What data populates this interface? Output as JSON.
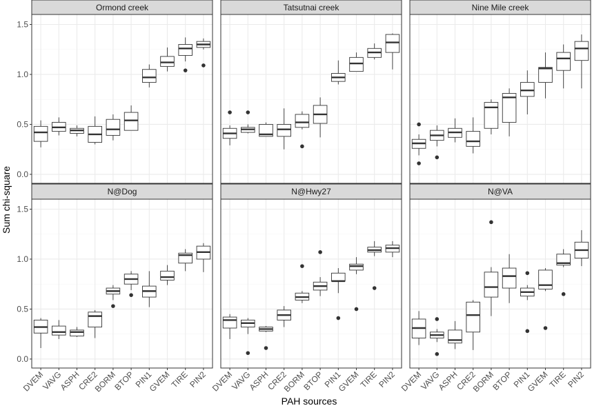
{
  "chart_data": {
    "type": "boxplot",
    "xlabel": "PAH sources",
    "ylabel": "Sum chi-square",
    "ylim": [
      -0.09,
      1.6
    ],
    "yticks": [
      0.0,
      0.5,
      1.0,
      1.5
    ],
    "ytick_labels": [
      "0.0",
      "0.5",
      "1.0",
      "1.5"
    ],
    "categories": [
      "DVEM",
      "VAVG",
      "ASPH",
      "CRE2",
      "BORM",
      "BTOP",
      "PIN1",
      "GVEM",
      "TIRE",
      "PIN2"
    ],
    "grid": true,
    "colors": {
      "panel_bg": "#ffffff",
      "strip_bg": "#d9d9d9",
      "border": "#333333",
      "grid_major": "#ebebeb",
      "grid_minor": "#f5f5f5",
      "box_line": "#333333",
      "outlier": "#333333"
    },
    "panels": [
      {
        "title": "Ormond creek",
        "boxes": [
          {
            "min": 0.27,
            "q1": 0.33,
            "median": 0.42,
            "q3": 0.48,
            "max": 0.54,
            "outliers": []
          },
          {
            "min": 0.39,
            "q1": 0.43,
            "median": 0.47,
            "q3": 0.52,
            "max": 0.57,
            "outliers": []
          },
          {
            "min": 0.38,
            "q1": 0.41,
            "median": 0.44,
            "q3": 0.46,
            "max": 0.49,
            "outliers": []
          },
          {
            "min": 0.3,
            "q1": 0.32,
            "median": 0.4,
            "q3": 0.48,
            "max": 0.58,
            "outliers": []
          },
          {
            "min": 0.34,
            "q1": 0.39,
            "median": 0.45,
            "q3": 0.55,
            "max": 0.6,
            "outliers": []
          },
          {
            "min": 0.44,
            "q1": 0.44,
            "median": 0.54,
            "q3": 0.62,
            "max": 0.69,
            "outliers": []
          },
          {
            "min": 0.87,
            "q1": 0.92,
            "median": 0.97,
            "q3": 1.05,
            "max": 1.1,
            "outliers": []
          },
          {
            "min": 1.03,
            "q1": 1.08,
            "median": 1.12,
            "q3": 1.18,
            "max": 1.27,
            "outliers": []
          },
          {
            "min": 1.13,
            "q1": 1.19,
            "median": 1.26,
            "q3": 1.3,
            "max": 1.37,
            "outliers": [
              1.04
            ]
          },
          {
            "min": 1.25,
            "q1": 1.27,
            "median": 1.3,
            "q3": 1.33,
            "max": 1.36,
            "outliers": [
              1.09
            ]
          }
        ]
      },
      {
        "title": "Tatsutnai creek",
        "boxes": [
          {
            "min": 0.29,
            "q1": 0.36,
            "median": 0.41,
            "q3": 0.46,
            "max": 0.49,
            "outliers": [
              0.62
            ]
          },
          {
            "min": 0.41,
            "q1": 0.42,
            "median": 0.45,
            "q3": 0.47,
            "max": 0.5,
            "outliers": [
              0.62
            ]
          },
          {
            "min": 0.38,
            "q1": 0.38,
            "median": 0.4,
            "q3": 0.5,
            "max": 0.52,
            "outliers": []
          },
          {
            "min": 0.25,
            "q1": 0.38,
            "median": 0.45,
            "q3": 0.5,
            "max": 0.66,
            "outliers": []
          },
          {
            "min": 0.45,
            "q1": 0.47,
            "median": 0.52,
            "q3": 0.6,
            "max": 0.63,
            "outliers": [
              0.28
            ]
          },
          {
            "min": 0.37,
            "q1": 0.51,
            "median": 0.6,
            "q3": 0.69,
            "max": 0.77,
            "outliers": []
          },
          {
            "min": 0.9,
            "q1": 0.93,
            "median": 0.97,
            "q3": 1.01,
            "max": 1.14,
            "outliers": []
          },
          {
            "min": 1.03,
            "q1": 1.03,
            "median": 1.11,
            "q3": 1.17,
            "max": 1.22,
            "outliers": []
          },
          {
            "min": 1.15,
            "q1": 1.17,
            "median": 1.22,
            "q3": 1.26,
            "max": 1.31,
            "outliers": []
          },
          {
            "min": 1.05,
            "q1": 1.22,
            "median": 1.32,
            "q3": 1.4,
            "max": 1.41,
            "outliers": []
          }
        ]
      },
      {
        "title": "Nine Mile creek",
        "boxes": [
          {
            "min": 0.19,
            "q1": 0.26,
            "median": 0.31,
            "q3": 0.35,
            "max": 0.4,
            "outliers": [
              0.11,
              0.5
            ]
          },
          {
            "min": 0.28,
            "q1": 0.34,
            "median": 0.39,
            "q3": 0.44,
            "max": 0.49,
            "outliers": [
              0.17
            ]
          },
          {
            "min": 0.32,
            "q1": 0.37,
            "median": 0.42,
            "q3": 0.46,
            "max": 0.56,
            "outliers": []
          },
          {
            "min": 0.21,
            "q1": 0.28,
            "median": 0.33,
            "q3": 0.43,
            "max": 0.57,
            "outliers": []
          },
          {
            "min": 0.4,
            "q1": 0.46,
            "median": 0.67,
            "q3": 0.72,
            "max": 0.75,
            "outliers": []
          },
          {
            "min": 0.38,
            "q1": 0.52,
            "median": 0.77,
            "q3": 0.81,
            "max": 0.86,
            "outliers": []
          },
          {
            "min": 0.6,
            "q1": 0.78,
            "median": 0.84,
            "q3": 0.92,
            "max": 1.04,
            "outliers": []
          },
          {
            "min": 0.76,
            "q1": 0.92,
            "median": 1.06,
            "q3": 1.07,
            "max": 1.22,
            "outliers": []
          },
          {
            "min": 0.86,
            "q1": 1.04,
            "median": 1.16,
            "q3": 1.22,
            "max": 1.3,
            "outliers": []
          },
          {
            "min": 0.86,
            "q1": 1.14,
            "median": 1.26,
            "q3": 1.33,
            "max": 1.4,
            "outliers": []
          }
        ]
      },
      {
        "title": "N@Dog",
        "boxes": [
          {
            "min": 0.11,
            "q1": 0.26,
            "median": 0.32,
            "q3": 0.39,
            "max": 0.41,
            "outliers": []
          },
          {
            "min": 0.2,
            "q1": 0.24,
            "median": 0.27,
            "q3": 0.33,
            "max": 0.39,
            "outliers": []
          },
          {
            "min": 0.22,
            "q1": 0.23,
            "median": 0.27,
            "q3": 0.29,
            "max": 0.32,
            "outliers": []
          },
          {
            "min": 0.21,
            "q1": 0.32,
            "median": 0.43,
            "q3": 0.47,
            "max": 0.49,
            "outliers": []
          },
          {
            "min": 0.59,
            "q1": 0.65,
            "median": 0.68,
            "q3": 0.71,
            "max": 0.74,
            "outliers": [
              0.53
            ]
          },
          {
            "min": 0.69,
            "q1": 0.75,
            "median": 0.8,
            "q3": 0.85,
            "max": 0.88,
            "outliers": [
              0.64
            ]
          },
          {
            "min": 0.52,
            "q1": 0.62,
            "median": 0.68,
            "q3": 0.73,
            "max": 0.88,
            "outliers": []
          },
          {
            "min": 0.74,
            "q1": 0.79,
            "median": 0.82,
            "q3": 0.88,
            "max": 0.94,
            "outliers": []
          },
          {
            "min": 0.88,
            "q1": 0.96,
            "median": 1.04,
            "q3": 1.06,
            "max": 1.1,
            "outliers": []
          },
          {
            "min": 0.87,
            "q1": 1.0,
            "median": 1.07,
            "q3": 1.13,
            "max": 1.16,
            "outliers": []
          }
        ]
      },
      {
        "title": "N@Hwy27",
        "boxes": [
          {
            "min": 0.2,
            "q1": 0.31,
            "median": 0.39,
            "q3": 0.42,
            "max": 0.45,
            "outliers": []
          },
          {
            "min": 0.25,
            "q1": 0.32,
            "median": 0.36,
            "q3": 0.39,
            "max": 0.41,
            "outliers": [
              0.06
            ]
          },
          {
            "min": 0.27,
            "q1": 0.28,
            "median": 0.3,
            "q3": 0.32,
            "max": 0.33,
            "outliers": [
              0.11
            ]
          },
          {
            "min": 0.32,
            "q1": 0.39,
            "median": 0.44,
            "q3": 0.49,
            "max": 0.53,
            "outliers": []
          },
          {
            "min": 0.56,
            "q1": 0.59,
            "median": 0.62,
            "q3": 0.66,
            "max": 0.68,
            "outliers": [
              0.93
            ]
          },
          {
            "min": 0.63,
            "q1": 0.69,
            "median": 0.73,
            "q3": 0.77,
            "max": 0.82,
            "outliers": [
              1.07
            ]
          },
          {
            "min": 0.66,
            "q1": 0.78,
            "median": 0.78,
            "q3": 0.86,
            "max": 0.91,
            "outliers": [
              0.41
            ]
          },
          {
            "min": 0.85,
            "q1": 0.89,
            "median": 0.93,
            "q3": 0.95,
            "max": 1.02,
            "outliers": [
              0.5
            ]
          },
          {
            "min": 1.03,
            "q1": 1.07,
            "median": 1.09,
            "q3": 1.12,
            "max": 1.18,
            "outliers": [
              0.71
            ]
          },
          {
            "min": 1.02,
            "q1": 1.07,
            "median": 1.11,
            "q3": 1.14,
            "max": 1.18,
            "outliers": []
          }
        ]
      },
      {
        "title": "N@VA",
        "boxes": [
          {
            "min": 0.14,
            "q1": 0.21,
            "median": 0.31,
            "q3": 0.4,
            "max": 0.48,
            "outliers": []
          },
          {
            "min": 0.17,
            "q1": 0.21,
            "median": 0.24,
            "q3": 0.27,
            "max": 0.3,
            "outliers": [
              0.05,
              0.4
            ]
          },
          {
            "min": 0.1,
            "q1": 0.16,
            "median": 0.19,
            "q3": 0.29,
            "max": 0.38,
            "outliers": []
          },
          {
            "min": 0.09,
            "q1": 0.27,
            "median": 0.44,
            "q3": 0.57,
            "max": 0.59,
            "outliers": []
          },
          {
            "min": 0.43,
            "q1": 0.62,
            "median": 0.72,
            "q3": 0.87,
            "max": 0.92,
            "outliers": [
              1.37
            ]
          },
          {
            "min": 0.56,
            "q1": 0.71,
            "median": 0.83,
            "q3": 0.91,
            "max": 1.05,
            "outliers": []
          },
          {
            "min": 0.59,
            "q1": 0.63,
            "median": 0.67,
            "q3": 0.71,
            "max": 0.74,
            "outliers": [
              0.28,
              0.86
            ]
          },
          {
            "min": 0.68,
            "q1": 0.7,
            "median": 0.74,
            "q3": 0.89,
            "max": 0.91,
            "outliers": [
              0.31
            ]
          },
          {
            "min": 0.92,
            "q1": 0.94,
            "median": 0.96,
            "q3": 1.05,
            "max": 1.1,
            "outliers": [
              0.65
            ]
          },
          {
            "min": 0.93,
            "q1": 1.01,
            "median": 1.09,
            "q3": 1.17,
            "max": 1.29,
            "outliers": []
          }
        ]
      }
    ]
  }
}
